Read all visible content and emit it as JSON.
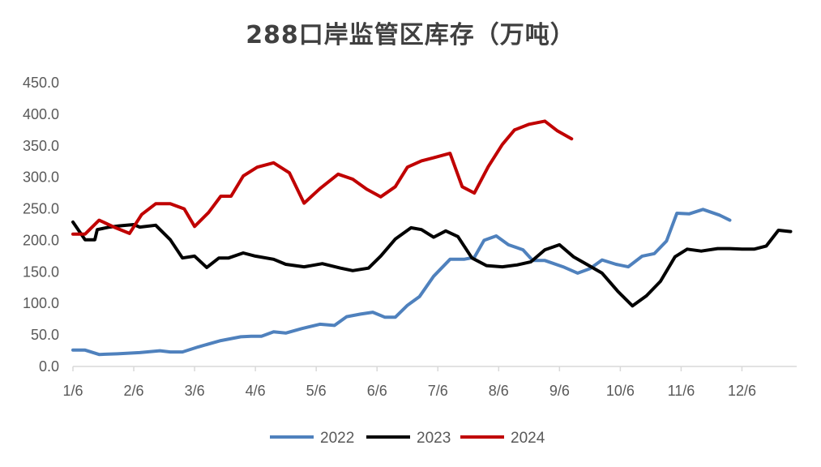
{
  "chart_data": {
    "type": "line",
    "title": "288口岸监管区库存（万吨）",
    "xlabel": "",
    "ylabel": "",
    "ylim": [
      0,
      450
    ],
    "yticks": [
      "0.0",
      "50.0",
      "100.0",
      "150.0",
      "200.0",
      "250.0",
      "300.0",
      "350.0",
      "400.0",
      "450.0"
    ],
    "xticks": [
      "1/6",
      "2/6",
      "3/6",
      "4/6",
      "5/6",
      "6/6",
      "7/6",
      "8/6",
      "9/6",
      "10/6",
      "11/6",
      "12/6"
    ],
    "x_range_months": [
      1,
      12.9
    ],
    "grid": false,
    "legend": "bottom",
    "series": [
      {
        "name": "2022",
        "color": "#4F81BD",
        "points": [
          [
            1.0,
            26
          ],
          [
            1.2,
            26
          ],
          [
            1.43,
            19
          ],
          [
            1.73,
            20
          ],
          [
            2.1,
            22
          ],
          [
            2.43,
            25
          ],
          [
            2.6,
            23
          ],
          [
            2.8,
            23
          ],
          [
            3.06,
            31
          ],
          [
            3.43,
            41
          ],
          [
            3.76,
            47
          ],
          [
            3.93,
            48
          ],
          [
            4.1,
            48
          ],
          [
            4.3,
            55
          ],
          [
            4.5,
            53
          ],
          [
            4.76,
            60
          ],
          [
            5.06,
            67
          ],
          [
            5.3,
            65
          ],
          [
            5.5,
            79
          ],
          [
            5.73,
            83
          ],
          [
            5.93,
            86
          ],
          [
            6.13,
            78
          ],
          [
            6.3,
            78
          ],
          [
            6.5,
            97
          ],
          [
            6.7,
            111
          ],
          [
            6.93,
            143
          ],
          [
            7.2,
            170
          ],
          [
            7.43,
            170
          ],
          [
            7.6,
            173
          ],
          [
            7.76,
            200
          ],
          [
            7.96,
            207
          ],
          [
            8.16,
            193
          ],
          [
            8.4,
            185
          ],
          [
            8.56,
            168
          ],
          [
            8.76,
            168
          ],
          [
            9.06,
            158
          ],
          [
            9.3,
            148
          ],
          [
            9.5,
            155
          ],
          [
            9.7,
            169
          ],
          [
            9.93,
            162
          ],
          [
            10.13,
            158
          ],
          [
            10.36,
            175
          ],
          [
            10.56,
            179
          ],
          [
            10.76,
            199
          ],
          [
            10.93,
            243
          ],
          [
            11.13,
            242
          ],
          [
            11.36,
            249
          ],
          [
            11.63,
            240
          ],
          [
            11.8,
            232
          ]
        ]
      },
      {
        "name": "2023",
        "color": "#000000",
        "points": [
          [
            1.0,
            229
          ],
          [
            1.2,
            201
          ],
          [
            1.36,
            201
          ],
          [
            1.4,
            217
          ],
          [
            1.6,
            221
          ],
          [
            1.76,
            223
          ],
          [
            2.0,
            225
          ],
          [
            2.1,
            221
          ],
          [
            2.36,
            224
          ],
          [
            2.6,
            201
          ],
          [
            2.8,
            172
          ],
          [
            3.0,
            175
          ],
          [
            3.2,
            157
          ],
          [
            3.4,
            172
          ],
          [
            3.56,
            172
          ],
          [
            3.8,
            180
          ],
          [
            4.0,
            175
          ],
          [
            4.3,
            170
          ],
          [
            4.5,
            162
          ],
          [
            4.8,
            158
          ],
          [
            5.1,
            163
          ],
          [
            5.4,
            156
          ],
          [
            5.6,
            152
          ],
          [
            5.86,
            156
          ],
          [
            6.06,
            175
          ],
          [
            6.3,
            202
          ],
          [
            6.56,
            220
          ],
          [
            6.73,
            217
          ],
          [
            6.93,
            205
          ],
          [
            7.13,
            215
          ],
          [
            7.33,
            206
          ],
          [
            7.56,
            172
          ],
          [
            7.8,
            160
          ],
          [
            8.06,
            158
          ],
          [
            8.3,
            161
          ],
          [
            8.53,
            166
          ],
          [
            8.76,
            185
          ],
          [
            9.0,
            193
          ],
          [
            9.23,
            174
          ],
          [
            9.43,
            163
          ],
          [
            9.7,
            148
          ],
          [
            9.96,
            119
          ],
          [
            10.2,
            96
          ],
          [
            10.43,
            112
          ],
          [
            10.66,
            135
          ],
          [
            10.9,
            174
          ],
          [
            11.1,
            186
          ],
          [
            11.33,
            183
          ],
          [
            11.6,
            187
          ],
          [
            11.8,
            187
          ],
          [
            12.0,
            186
          ],
          [
            12.2,
            186
          ],
          [
            12.4,
            191
          ],
          [
            12.6,
            216
          ],
          [
            12.8,
            214
          ]
        ]
      },
      {
        "name": "2024",
        "color": "#C00000",
        "points": [
          [
            1.0,
            210
          ],
          [
            1.2,
            210
          ],
          [
            1.43,
            232
          ],
          [
            1.7,
            220
          ],
          [
            1.93,
            211
          ],
          [
            2.13,
            241
          ],
          [
            2.36,
            258
          ],
          [
            2.6,
            258
          ],
          [
            2.83,
            250
          ],
          [
            3.0,
            222
          ],
          [
            3.23,
            244
          ],
          [
            3.43,
            270
          ],
          [
            3.6,
            270
          ],
          [
            3.8,
            302
          ],
          [
            4.03,
            316
          ],
          [
            4.3,
            323
          ],
          [
            4.56,
            307
          ],
          [
            4.8,
            259
          ],
          [
            5.06,
            282
          ],
          [
            5.36,
            305
          ],
          [
            5.6,
            297
          ],
          [
            5.83,
            281
          ],
          [
            6.06,
            269
          ],
          [
            6.3,
            285
          ],
          [
            6.5,
            316
          ],
          [
            6.73,
            326
          ],
          [
            6.93,
            331
          ],
          [
            7.2,
            338
          ],
          [
            7.4,
            285
          ],
          [
            7.6,
            275
          ],
          [
            7.83,
            317
          ],
          [
            8.06,
            352
          ],
          [
            8.26,
            375
          ],
          [
            8.5,
            384
          ],
          [
            8.76,
            389
          ],
          [
            8.96,
            374
          ],
          [
            9.2,
            361
          ]
        ]
      }
    ]
  }
}
